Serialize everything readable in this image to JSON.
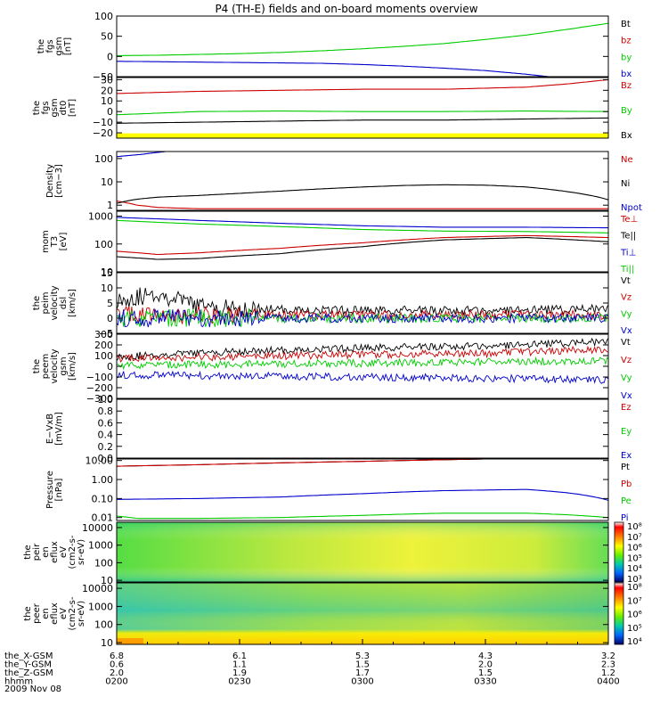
{
  "title": "P4 (TH-E) fields and on-board moments overview",
  "chart_data": {
    "type": "line",
    "title": "P4 (TH-E) fields and on-board moments overview",
    "x_axis": {
      "tick_labels": [
        "0200",
        "0230",
        "0300",
        "0330",
        "0400"
      ],
      "rows": [
        {
          "label": "the_X-GSM",
          "values": [
            "6.8",
            "6.1",
            "5.3",
            "4.3",
            "3.2"
          ]
        },
        {
          "label": "the_Y-GSM",
          "values": [
            "0.6",
            "1.1",
            "1.5",
            "2.0",
            "2.3"
          ]
        },
        {
          "label": "the_Z-GSM",
          "values": [
            "2.0",
            "1.9",
            "1.7",
            "1.5",
            "1.2"
          ]
        },
        {
          "label": "hhmm",
          "values": [
            "0200",
            "0230",
            "0300",
            "0330",
            "0400"
          ]
        }
      ],
      "date": "2009 Nov 08"
    },
    "panels": [
      {
        "ylabel": [
          "the",
          "fgs",
          "gsm",
          "[nT]"
        ],
        "ylim": [
          -50,
          100
        ],
        "yticks": [
          {
            "v": 100,
            "t": "100"
          },
          {
            "v": 50,
            "t": "50"
          },
          {
            "v": 0,
            "t": "0"
          },
          {
            "v": -50,
            "t": "−50"
          }
        ],
        "series": [
          {
            "name": "Bt",
            "color": "#000000",
            "x": [],
            "y": []
          },
          {
            "name": "bz",
            "color": "#cc0000",
            "x": [],
            "y": []
          },
          {
            "name": "by",
            "color": "#00cc00",
            "x": [
              0,
              10,
              20,
              30,
              40,
              50,
              60,
              70,
              80,
              90,
              100,
              110,
              120
            ],
            "y": [
              2,
              3,
              5,
              7,
              10,
              14,
              19,
              25,
              32,
              42,
              53,
              67,
              82
            ]
          },
          {
            "name": "bx",
            "color": "#0000cc",
            "x": [
              0,
              10,
              20,
              30,
              40,
              50,
              60,
              70,
              80,
              90,
              100,
              110,
              120
            ],
            "y": [
              -12,
              -13,
              -14,
              -15,
              -16,
              -17,
              -20,
              -24,
              -29,
              -35,
              -44,
              -55,
              -68
            ]
          }
        ]
      },
      {
        "ylabel": [
          "the",
          "fgs",
          "gsm",
          "dt0",
          "[nT]"
        ],
        "ylim": [
          -25,
          32
        ],
        "yticks": [
          {
            "v": 30,
            "t": "30"
          },
          {
            "v": 20,
            "t": "20"
          },
          {
            "v": 10,
            "t": "10"
          },
          {
            "v": 0,
            "t": "0"
          },
          {
            "v": -10,
            "t": "−10"
          },
          {
            "v": -20,
            "t": "−20"
          }
        ],
        "band": {
          "color": "#ffff00",
          "from": -20.5,
          "to": -25
        },
        "series": [
          {
            "name": "Bz",
            "color": "#cc0000",
            "x": [
              0,
              20,
              40,
              60,
              80,
              100,
              110,
              120
            ],
            "y": [
              17,
              19,
              20,
              21,
              21,
              23,
              26,
              30
            ]
          },
          {
            "name": "By",
            "color": "#00cc00",
            "x": [
              0,
              20,
              40,
              60,
              80,
              100,
              120
            ],
            "y": [
              -3,
              0,
              0.5,
              0,
              0,
              0.5,
              0
            ]
          },
          {
            "name": "Bx",
            "color": "#000000",
            "x": [
              0,
              20,
              40,
              60,
              80,
              100,
              120
            ],
            "y": [
              -11,
              -10,
              -9,
              -8,
              -8,
              -7,
              -6
            ]
          }
        ]
      },
      {
        "ylabel": [
          "Density",
          "[cm−3]"
        ],
        "log": true,
        "ylim": [
          0.6,
          200
        ],
        "yticks": [
          {
            "v": 100,
            "t": "100"
          },
          {
            "v": 10,
            "t": "10"
          },
          {
            "v": 1,
            "t": "1"
          }
        ],
        "series": [
          {
            "name": "Ne",
            "color": "#cc0000",
            "x": [
              0,
              5,
              10,
              20,
              40,
              60,
              80,
              100,
              120
            ],
            "y": [
              1.5,
              1.0,
              0.8,
              0.7,
              0.7,
              0.7,
              0.7,
              0.7,
              0.7
            ]
          },
          {
            "name": "Ni",
            "color": "#000000",
            "x": [
              0,
              5,
              10,
              20,
              30,
              40,
              50,
              60,
              70,
              80,
              90,
              100,
              110,
              120
            ],
            "y": [
              1.2,
              1.8,
              2.2,
              2.6,
              3.2,
              4.0,
              5.0,
              6.0,
              7.0,
              7.5,
              7.2,
              6.0,
              3.8,
              1.7
            ]
          },
          {
            "name": "Npot",
            "color": "#0000cc",
            "x": [
              0,
              6,
              12
            ],
            "y": [
              120,
              150,
              200
            ]
          }
        ]
      },
      {
        "ylabel": [
          "mom",
          "T3",
          "[eV]"
        ],
        "log": true,
        "ylim": [
          10,
          1500
        ],
        "yticks": [
          {
            "v": 1000,
            "t": "1000"
          },
          {
            "v": 100,
            "t": "100"
          },
          {
            "v": 10,
            "t": "10"
          }
        ],
        "series": [
          {
            "name": "Te⊥",
            "color": "#cc0000",
            "x": [
              0,
              10,
              20,
              40,
              60,
              80,
              100,
              120
            ],
            "y": [
              55,
              42,
              48,
              70,
              110,
              170,
              200,
              170
            ]
          },
          {
            "name": "Te||",
            "color": "#000000",
            "x": [
              0,
              10,
              20,
              40,
              60,
              80,
              100,
              120
            ],
            "y": [
              35,
              28,
              30,
              45,
              80,
              140,
              170,
              120
            ]
          },
          {
            "name": "Ti⊥",
            "color": "#0000cc",
            "x": [
              0,
              10,
              20,
              40,
              60,
              80,
              100,
              120
            ],
            "y": [
              900,
              800,
              700,
              550,
              450,
              400,
              400,
              380
            ]
          },
          {
            "name": "Ti||",
            "color": "#00cc00",
            "x": [
              0,
              10,
              20,
              40,
              60,
              80,
              100,
              120
            ],
            "y": [
              700,
              600,
              520,
              420,
              330,
              290,
              280,
              250
            ]
          }
        ]
      },
      {
        "ylabel": [
          "the",
          "peim",
          "velocity",
          "dsl",
          "[km/s]"
        ],
        "ylim": [
          -5,
          15
        ],
        "yticks": [
          {
            "v": 15,
            "t": "15"
          },
          {
            "v": 10,
            "t": "10"
          },
          {
            "v": 5,
            "t": "5"
          },
          {
            "v": 0,
            "t": "0"
          },
          {
            "v": -5,
            "t": "−5"
          }
        ],
        "series": [
          {
            "name": "Vt",
            "color": "#000000",
            "x": [
              0,
              10,
              20,
              30,
              60,
              90,
              120
            ],
            "y": [
              6,
              8,
              4,
              3,
              2.5,
              2.5,
              3
            ]
          },
          {
            "name": "Vz",
            "color": "#cc0000",
            "x": [
              0,
              30,
              60,
              90,
              120
            ],
            "y": [
              1,
              1,
              1,
              1,
              1
            ]
          },
          {
            "name": "Vy",
            "color": "#00cc00",
            "x": [
              0,
              30,
              60,
              90,
              120
            ],
            "y": [
              0,
              0,
              0,
              0,
              0
            ]
          },
          {
            "name": "Vx",
            "color": "#0000cc",
            "x": [
              0,
              30,
              60,
              90,
              120
            ],
            "y": [
              0,
              0,
              0,
              0,
              0
            ]
          }
        ]
      },
      {
        "ylabel": [
          "the",
          "peem",
          "velocity",
          "gsm",
          "[km/s]"
        ],
        "ylim": [
          -300,
          300
        ],
        "yticks": [
          {
            "v": 300,
            "t": "300"
          },
          {
            "v": 200,
            "t": "200"
          },
          {
            "v": 100,
            "t": "100"
          },
          {
            "v": 0,
            "t": "0"
          },
          {
            "v": -100,
            "t": "−100"
          },
          {
            "v": -200,
            "t": "−200"
          },
          {
            "v": -300,
            "t": "−300"
          }
        ],
        "series": [
          {
            "name": "Vt",
            "color": "#000000",
            "x": [
              0,
              30,
              60,
              90,
              120
            ],
            "y": [
              90,
              140,
              170,
              190,
              230
            ]
          },
          {
            "name": "Vz",
            "color": "#cc0000",
            "x": [
              0,
              30,
              60,
              90,
              120
            ],
            "y": [
              70,
              90,
              110,
              120,
              160
            ]
          },
          {
            "name": "Vy",
            "color": "#00cc00",
            "x": [
              0,
              30,
              60,
              90,
              120
            ],
            "y": [
              10,
              20,
              30,
              40,
              50
            ]
          },
          {
            "name": "Vx",
            "color": "#0000cc",
            "x": [
              0,
              30,
              60,
              90,
              120
            ],
            "y": [
              -80,
              -90,
              -100,
              -110,
              -130
            ]
          }
        ]
      },
      {
        "ylabel": [
          "E−VxB",
          "[mV/m]"
        ],
        "ylim": [
          0,
          1
        ],
        "yticks": [
          {
            "v": 1.0,
            "t": "1.0"
          },
          {
            "v": 0.8,
            "t": "0.8"
          },
          {
            "v": 0.6,
            "t": "0.6"
          },
          {
            "v": 0.4,
            "t": "0.4"
          },
          {
            "v": 0.2,
            "t": "0.2"
          },
          {
            "v": 0.0,
            "t": "0.0"
          }
        ],
        "series": [
          {
            "name": "Ez",
            "color": "#cc0000",
            "x": [],
            "y": []
          },
          {
            "name": "Ey",
            "color": "#00cc00",
            "x": [],
            "y": []
          },
          {
            "name": "Ex",
            "color": "#0000cc",
            "x": [],
            "y": []
          }
        ]
      },
      {
        "ylabel": [
          "Pressure",
          "[nPa]"
        ],
        "log": true,
        "ylim": [
          0.007,
          12
        ],
        "yticks": [
          {
            "v": 10,
            "t": "10.00"
          },
          {
            "v": 1,
            "t": "1.00"
          },
          {
            "v": 0.1,
            "t": "0.10"
          },
          {
            "v": 0.01,
            "t": "0.01"
          }
        ],
        "series": [
          {
            "name": "Pt",
            "color": "#000000",
            "x": [
              0,
              20,
              40,
              60,
              80,
              100,
              120
            ],
            "y": [
              5,
              6,
              7.5,
              9,
              11,
              13,
              16
            ]
          },
          {
            "name": "Pb",
            "color": "#cc0000",
            "x": [
              0,
              20,
              40,
              60,
              80,
              100,
              120
            ],
            "y": [
              5,
              6,
              7.5,
              9,
              11,
              13,
              16
            ]
          },
          {
            "name": "Pe",
            "color": "#00cc00",
            "x": [
              0,
              5,
              20,
              40,
              60,
              80,
              100,
              110,
              120
            ],
            "y": [
              0.012,
              0.009,
              0.009,
              0.01,
              0.013,
              0.017,
              0.017,
              0.014,
              0.01
            ]
          },
          {
            "name": "Pi",
            "color": "#0000cc",
            "x": [
              0,
              20,
              40,
              60,
              80,
              100,
              110,
              120
            ],
            "y": [
              0.09,
              0.1,
              0.12,
              0.18,
              0.26,
              0.3,
              0.2,
              0.08
            ]
          }
        ]
      },
      {
        "type": "heatmap",
        "ylabel": [
          "the",
          "peir",
          "en",
          "eflux",
          "eV",
          "(cm2-s-",
          "sr-eV)"
        ],
        "log": true,
        "ylim": [
          8,
          20000
        ],
        "yticks": [
          {
            "v": 10000,
            "t": "10000"
          },
          {
            "v": 1000,
            "t": "1000"
          },
          {
            "v": 100,
            "t": "100"
          },
          {
            "v": 10,
            "t": "10"
          }
        ]
      },
      {
        "type": "heatmap",
        "ylabel": [
          "the",
          "peer",
          "en",
          "eflux",
          "eV",
          "(cm2-s-",
          "sr-eV)"
        ],
        "log": true,
        "ylim": [
          8,
          20000
        ],
        "yticks": [
          {
            "v": 10000,
            "t": "10000"
          },
          {
            "v": 1000,
            "t": "1000"
          },
          {
            "v": 100,
            "t": "100"
          },
          {
            "v": 10,
            "t": "10"
          }
        ]
      }
    ],
    "colorbar": {
      "tick_labels": [
        "10⁸",
        "10⁷",
        "10⁶",
        "10⁵",
        "10⁴",
        "10³"
      ],
      "tick_labels_2": [
        "10⁸",
        "10⁷",
        "10⁶",
        "10⁵",
        "10⁴"
      ],
      "colors": [
        "#ff0000",
        "#ff8800",
        "#ffff00",
        "#88ff00",
        "#00cc88",
        "#00ccff",
        "#0000ff",
        "#000088"
      ]
    }
  }
}
